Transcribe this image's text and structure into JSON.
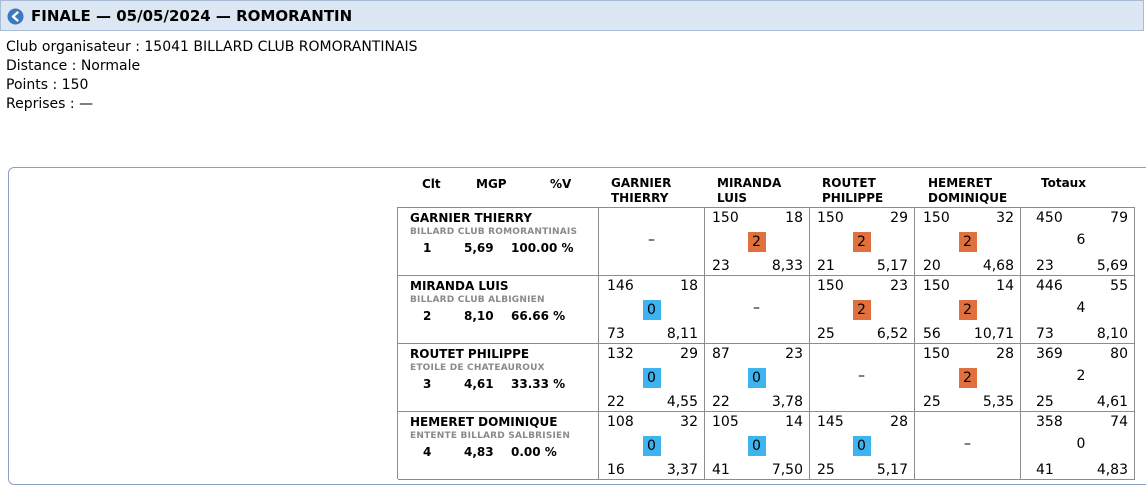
{
  "header": {
    "title": "FINALE — 05/05/2024 — ROMORANTIN"
  },
  "info": {
    "club": "Club organisateur : 15041 BILLARD CLUB ROMORANTINAIS",
    "distance": "Distance : Normale",
    "points": "Points : 150",
    "reprises": "Reprises : —"
  },
  "columns": {
    "clt": "Clt",
    "mgp": "MGP",
    "pv": "%V",
    "p1": [
      "GARNIER",
      "THIERRY"
    ],
    "p2": [
      "MIRANDA",
      "LUIS"
    ],
    "p3": [
      "ROUTET",
      "PHILIPPE"
    ],
    "p4": [
      "HEMERET",
      "DOMINIQUE"
    ],
    "totaux": "Totaux"
  },
  "players": [
    {
      "name": "GARNIER THIERRY",
      "club": "BILLARD CLUB ROMORANTINAIS",
      "clt": "1",
      "mgp": "5,69",
      "pv": "100.00 %",
      "cells": [
        null,
        {
          "points": "150",
          "serie": "18",
          "result": "2",
          "reprises": "23",
          "moyenne": "8,33"
        },
        {
          "points": "150",
          "serie": "29",
          "result": "2",
          "reprises": "21",
          "moyenne": "5,17"
        },
        {
          "points": "150",
          "serie": "32",
          "result": "2",
          "reprises": "20",
          "moyenne": "4,68"
        }
      ],
      "totals": {
        "points": "450",
        "serie": "79",
        "pts": "6",
        "reprises": "23",
        "moyenne": "5,69"
      }
    },
    {
      "name": "MIRANDA LUIS",
      "club": "BILLARD CLUB ALBIGNIEN",
      "clt": "2",
      "mgp": "8,10",
      "pv": "66.66 %",
      "cells": [
        {
          "points": "146",
          "serie": "18",
          "result": "0",
          "reprises": "73",
          "moyenne": "8,11"
        },
        null,
        {
          "points": "150",
          "serie": "23",
          "result": "2",
          "reprises": "25",
          "moyenne": "6,52"
        },
        {
          "points": "150",
          "serie": "14",
          "result": "2",
          "reprises": "56",
          "moyenne": "10,71"
        }
      ],
      "totals": {
        "points": "446",
        "serie": "55",
        "pts": "4",
        "reprises": "73",
        "moyenne": "8,10"
      }
    },
    {
      "name": "ROUTET PHILIPPE",
      "club": "ETOILE DE CHATEAUROUX",
      "clt": "3",
      "mgp": "4,61",
      "pv": "33.33 %",
      "cells": [
        {
          "points": "132",
          "serie": "29",
          "result": "0",
          "reprises": "22",
          "moyenne": "4,55"
        },
        {
          "points": "87",
          "serie": "23",
          "result": "0",
          "reprises": "22",
          "moyenne": "3,78"
        },
        null,
        {
          "points": "150",
          "serie": "28",
          "result": "2",
          "reprises": "25",
          "moyenne": "5,35"
        }
      ],
      "totals": {
        "points": "369",
        "serie": "80",
        "pts": "2",
        "reprises": "25",
        "moyenne": "4,61"
      }
    },
    {
      "name": "HEMERET DOMINIQUE",
      "club": "ENTENTE BILLARD SALBRISIEN",
      "clt": "4",
      "mgp": "4,83",
      "pv": "0.00 %",
      "cells": [
        {
          "points": "108",
          "serie": "32",
          "result": "0",
          "reprises": "16",
          "moyenne": "3,37"
        },
        {
          "points": "105",
          "serie": "14",
          "result": "0",
          "reprises": "41",
          "moyenne": "7,50"
        },
        {
          "points": "145",
          "serie": "28",
          "result": "0",
          "reprises": "25",
          "moyenne": "5,17"
        },
        null
      ],
      "totals": {
        "points": "358",
        "serie": "74",
        "pts": "0",
        "reprises": "41",
        "moyenne": "4,83"
      }
    }
  ],
  "empty_cell": "–",
  "colors": {
    "win": "#e0703e",
    "loss": "#3db3f0",
    "titlebar": "#dde6f3",
    "back_icon": "#3a78c4"
  }
}
